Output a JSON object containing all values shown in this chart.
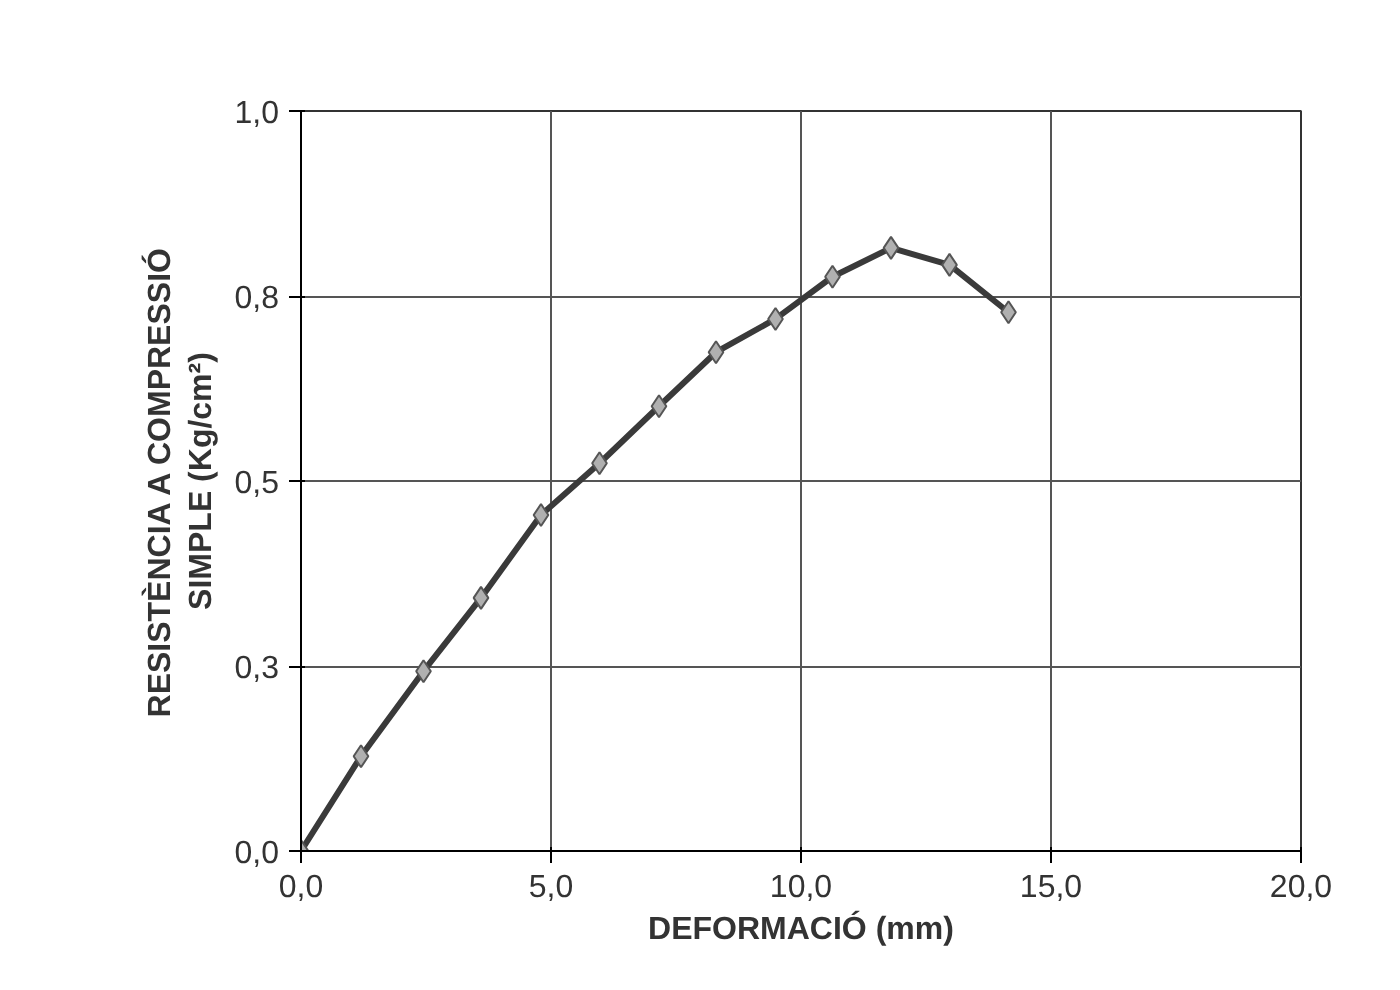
{
  "chart_data": {
    "type": "line",
    "xlabel": "DEFORMACIÓ (mm)",
    "ylabel": "RESISTÈNCIA A COMPRESSIÓ\nSIMPLE (Kg/cm²)",
    "xlim": [
      0,
      20
    ],
    "ylim": [
      0,
      1
    ],
    "xticks": [
      {
        "value": 0,
        "label": "0,0"
      },
      {
        "value": 5,
        "label": "5,0"
      },
      {
        "value": 10,
        "label": "10,0"
      },
      {
        "value": 15,
        "label": "15,0"
      },
      {
        "value": 20,
        "label": "20,0"
      }
    ],
    "yticks": [
      {
        "value": 0,
        "label": "0,0"
      },
      {
        "value": 0.25,
        "label": "0,3"
      },
      {
        "value": 0.5,
        "label": "0,5"
      },
      {
        "value": 0.75,
        "label": "0,8"
      },
      {
        "value": 1,
        "label": "1,0"
      }
    ],
    "grid": true,
    "marker": "diamond",
    "line_style": "solid",
    "series": [
      {
        "color": "#3a3a3a",
        "x": [
          0,
          1.2,
          2.45,
          3.6,
          4.8,
          5.97,
          7.16,
          8.3,
          9.49,
          10.63,
          11.8,
          12.97,
          14.15
        ],
        "values": [
          0,
          0.128,
          0.243,
          0.342,
          0.454,
          0.524,
          0.601,
          0.674,
          0.719,
          0.776,
          0.815,
          0.792,
          0.728
        ]
      }
    ]
  }
}
